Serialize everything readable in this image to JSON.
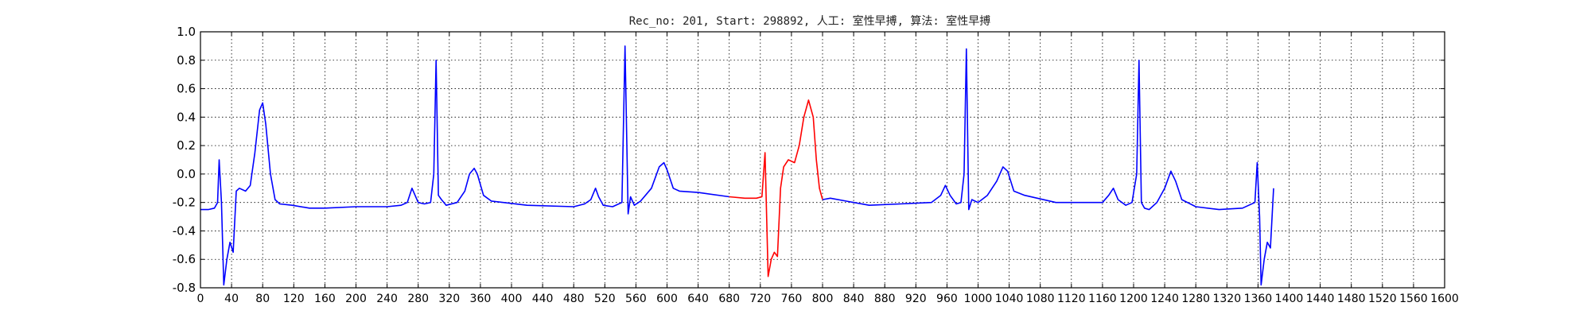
{
  "chart_data": {
    "type": "line",
    "title": "Rec_no: 201, Start: 298892, 人工: 室性早搏, 算法: 室性早搏",
    "xlabel": "",
    "ylabel": "",
    "xlim": [
      0,
      1600
    ],
    "ylim": [
      -0.8,
      1.0
    ],
    "grid": true,
    "y_ticks": [
      "-0.8",
      "-0.6",
      "-0.4",
      "-0.2",
      "0.0",
      "0.2",
      "0.4",
      "0.6",
      "0.8",
      "1.0"
    ],
    "x_ticks": [
      "0",
      "40",
      "80",
      "120",
      "160",
      "200",
      "240",
      "280",
      "320",
      "360",
      "400",
      "440",
      "480",
      "520",
      "560",
      "600",
      "640",
      "680",
      "720",
      "760",
      "800",
      "840",
      "880",
      "920",
      "960",
      "1000",
      "1040",
      "1080",
      "1120",
      "1160",
      "1200",
      "1240",
      "1280",
      "1320",
      "1360",
      "1400",
      "1440",
      "1480",
      "1520",
      "1560",
      "1600"
    ],
    "series": [
      {
        "color": "#0000ff",
        "points": [
          [
            0,
            -0.25
          ],
          [
            10,
            -0.25
          ],
          [
            18,
            -0.24
          ],
          [
            22,
            -0.2
          ],
          [
            24,
            0.1
          ],
          [
            27,
            -0.2
          ],
          [
            30,
            -0.78
          ],
          [
            34,
            -0.6
          ],
          [
            38,
            -0.48
          ],
          [
            42,
            -0.55
          ],
          [
            46,
            -0.12
          ],
          [
            50,
            -0.1
          ],
          [
            58,
            -0.12
          ],
          [
            64,
            -0.08
          ],
          [
            70,
            0.15
          ],
          [
            76,
            0.45
          ],
          [
            80,
            0.5
          ],
          [
            84,
            0.35
          ],
          [
            90,
            0.0
          ],
          [
            96,
            -0.18
          ],
          [
            102,
            -0.21
          ],
          [
            118,
            -0.22
          ],
          [
            140,
            -0.24
          ],
          [
            160,
            -0.24
          ],
          [
            200,
            -0.23
          ],
          [
            240,
            -0.23
          ],
          [
            258,
            -0.22
          ],
          [
            266,
            -0.2
          ],
          [
            272,
            -0.1
          ],
          [
            276,
            -0.15
          ],
          [
            280,
            -0.2
          ],
          [
            288,
            -0.21
          ],
          [
            296,
            -0.2
          ],
          [
            300,
            0.0
          ],
          [
            303,
            0.8
          ],
          [
            306,
            -0.15
          ],
          [
            310,
            -0.18
          ],
          [
            316,
            -0.22
          ],
          [
            330,
            -0.2
          ],
          [
            340,
            -0.12
          ],
          [
            346,
            0.0
          ],
          [
            352,
            0.04
          ],
          [
            356,
            0.0
          ],
          [
            364,
            -0.15
          ],
          [
            374,
            -0.19
          ],
          [
            420,
            -0.22
          ],
          [
            480,
            -0.23
          ],
          [
            494,
            -0.21
          ],
          [
            502,
            -0.18
          ],
          [
            508,
            -0.1
          ],
          [
            512,
            -0.16
          ],
          [
            518,
            -0.22
          ],
          [
            530,
            -0.23
          ],
          [
            542,
            -0.2
          ],
          [
            546,
            0.9
          ],
          [
            550,
            -0.28
          ],
          [
            553,
            -0.16
          ],
          [
            558,
            -0.22
          ],
          [
            566,
            -0.19
          ],
          [
            580,
            -0.1
          ],
          [
            590,
            0.05
          ],
          [
            596,
            0.08
          ],
          [
            600,
            0.03
          ],
          [
            608,
            -0.1
          ],
          [
            616,
            -0.12
          ],
          [
            640,
            -0.13
          ],
          [
            680,
            -0.16
          ]
        ]
      },
      {
        "color": "#ff0000",
        "points": [
          [
            680,
            -0.16
          ],
          [
            700,
            -0.17
          ],
          [
            715,
            -0.17
          ],
          [
            722,
            -0.16
          ],
          [
            726,
            0.15
          ],
          [
            730,
            -0.72
          ],
          [
            734,
            -0.6
          ],
          [
            738,
            -0.55
          ],
          [
            742,
            -0.58
          ],
          [
            746,
            -0.1
          ],
          [
            750,
            0.05
          ],
          [
            756,
            0.1
          ],
          [
            764,
            0.08
          ],
          [
            770,
            0.2
          ],
          [
            776,
            0.4
          ],
          [
            782,
            0.52
          ],
          [
            788,
            0.4
          ],
          [
            792,
            0.1
          ],
          [
            796,
            -0.1
          ],
          [
            800,
            -0.18
          ]
        ]
      },
      {
        "color": "#0000ff",
        "points": [
          [
            800,
            -0.18
          ],
          [
            810,
            -0.17
          ],
          [
            830,
            -0.19
          ],
          [
            860,
            -0.22
          ],
          [
            900,
            -0.21
          ],
          [
            940,
            -0.2
          ],
          [
            952,
            -0.15
          ],
          [
            958,
            -0.08
          ],
          [
            964,
            -0.15
          ],
          [
            972,
            -0.21
          ],
          [
            978,
            -0.2
          ],
          [
            982,
            0.0
          ],
          [
            985,
            0.88
          ],
          [
            988,
            -0.25
          ],
          [
            992,
            -0.18
          ],
          [
            1000,
            -0.2
          ],
          [
            1012,
            -0.15
          ],
          [
            1024,
            -0.05
          ],
          [
            1032,
            0.05
          ],
          [
            1038,
            0.02
          ],
          [
            1046,
            -0.12
          ],
          [
            1060,
            -0.15
          ],
          [
            1100,
            -0.2
          ],
          [
            1140,
            -0.2
          ],
          [
            1160,
            -0.2
          ],
          [
            1168,
            -0.15
          ],
          [
            1174,
            -0.1
          ],
          [
            1180,
            -0.18
          ],
          [
            1190,
            -0.22
          ],
          [
            1198,
            -0.2
          ],
          [
            1204,
            0.0
          ],
          [
            1207,
            0.8
          ],
          [
            1210,
            -0.2
          ],
          [
            1214,
            -0.24
          ],
          [
            1220,
            -0.25
          ],
          [
            1230,
            -0.2
          ],
          [
            1240,
            -0.1
          ],
          [
            1248,
            0.02
          ],
          [
            1254,
            -0.05
          ],
          [
            1262,
            -0.18
          ],
          [
            1280,
            -0.23
          ],
          [
            1310,
            -0.25
          ],
          [
            1340,
            -0.24
          ],
          [
            1356,
            -0.2
          ],
          [
            1359,
            0.08
          ],
          [
            1362,
            -0.3
          ],
          [
            1364,
            -0.78
          ],
          [
            1368,
            -0.6
          ],
          [
            1372,
            -0.48
          ],
          [
            1376,
            -0.52
          ],
          [
            1380,
            -0.1
          ]
        ]
      }
    ]
  }
}
